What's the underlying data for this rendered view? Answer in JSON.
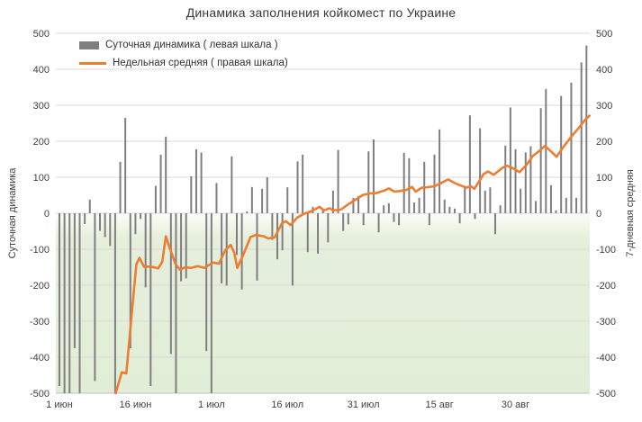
{
  "window": {
    "title": "Динамика заполнения койкомест по Украине"
  },
  "colors": {
    "bar": "#7f7f7f",
    "line": "#ed7d31",
    "grid": "#d9d9d9",
    "axis_line": "#bfbfbf",
    "tick_text": "#404040",
    "negative_band_top": "#fbfdf8",
    "negative_band": "#e5efdc",
    "negative_band_bottom": "#e2edd7"
  },
  "chart_data": {
    "type": "combo",
    "title": "Динамика заполнения койкомест по Украине",
    "legend_position": "top-left",
    "grid": "horizontal",
    "x_axis": {
      "tick_labels": [
        "1 июн",
        "16 июн",
        "1 июл",
        "16 июл",
        "31 июл",
        "15 авг",
        "30 авг"
      ],
      "tick_day_index": [
        0,
        15,
        30,
        45,
        60,
        75,
        90
      ]
    },
    "y_axis_left": {
      "title": "Суточная динамика",
      "min": -500,
      "max": 500,
      "step": 100,
      "ticks": [
        500,
        400,
        300,
        200,
        100,
        0,
        -100,
        -200,
        -300,
        -400,
        -500
      ]
    },
    "y_axis_right": {
      "title": "7-дневная средняя",
      "min": -500,
      "max": 500,
      "step": 100,
      "ticks": [
        500,
        400,
        300,
        200,
        100,
        0,
        -100,
        -200,
        -300,
        -400,
        -500
      ]
    },
    "series": [
      {
        "name": "Суточная динамика",
        "legend_label": "Суточная динамика ( левая шкала )",
        "type": "bar",
        "axis": "left",
        "color": "#7f7f7f",
        "points": [
          {
            "date": "1 июн",
            "value": -480
          },
          {
            "date": "2 июн",
            "value": -500
          },
          {
            "date": "3 июн",
            "value": -500
          },
          {
            "date": "4 июн",
            "value": -375
          },
          {
            "date": "5 июн",
            "value": -500
          },
          {
            "date": "6 июн",
            "value": -30
          },
          {
            "date": "7 июн",
            "value": 38
          },
          {
            "date": "8 июн",
            "value": -466
          },
          {
            "date": "9 июн",
            "value": -49
          },
          {
            "date": "10 июн",
            "value": -66
          },
          {
            "date": "11 июн",
            "value": -91
          },
          {
            "date": "12 июн",
            "value": -500
          },
          {
            "date": "13 июн",
            "value": 143
          },
          {
            "date": "14 июн",
            "value": 265
          },
          {
            "date": "15 июн",
            "value": -375
          },
          {
            "date": "16 июн",
            "value": -58
          },
          {
            "date": "17 июн",
            "value": -16
          },
          {
            "date": "18 июн",
            "value": -206
          },
          {
            "date": "19 июн",
            "value": -480
          },
          {
            "date": "20 июн",
            "value": 76
          },
          {
            "date": "21 июн",
            "value": 163
          },
          {
            "date": "22 июн",
            "value": 213
          },
          {
            "date": "23 июн",
            "value": -391
          },
          {
            "date": "24 июн",
            "value": -500
          },
          {
            "date": "25 июн",
            "value": -189
          },
          {
            "date": "26 июн",
            "value": -181
          },
          {
            "date": "27 июн",
            "value": 103
          },
          {
            "date": "28 июн",
            "value": 178
          },
          {
            "date": "29 июн",
            "value": 169
          },
          {
            "date": "30 июн",
            "value": -383
          },
          {
            "date": "1 июл",
            "value": -500
          },
          {
            "date": "2 июл",
            "value": 84
          },
          {
            "date": "3 июл",
            "value": -195
          },
          {
            "date": "4 июл",
            "value": -201
          },
          {
            "date": "5 июл",
            "value": 158
          },
          {
            "date": "6 июл",
            "value": -116
          },
          {
            "date": "7 июл",
            "value": -212
          },
          {
            "date": "8 июл",
            "value": 5
          },
          {
            "date": "9 июл",
            "value": 73
          },
          {
            "date": "10 июл",
            "value": -187
          },
          {
            "date": "11 июл",
            "value": 68
          },
          {
            "date": "12 июл",
            "value": 100
          },
          {
            "date": "13 июл",
            "value": -74
          },
          {
            "date": "14 июл",
            "value": -128
          },
          {
            "date": "15 июл",
            "value": -103
          },
          {
            "date": "16 июл",
            "value": 72
          },
          {
            "date": "17 июл",
            "value": -201
          },
          {
            "date": "18 июл",
            "value": 144
          },
          {
            "date": "19 июл",
            "value": 163
          },
          {
            "date": "20 июл",
            "value": -108
          },
          {
            "date": "21 июл",
            "value": 18
          },
          {
            "date": "22 июл",
            "value": -112
          },
          {
            "date": "23 июл",
            "value": 9
          },
          {
            "date": "24 июл",
            "value": -81
          },
          {
            "date": "25 июл",
            "value": 63
          },
          {
            "date": "26 июл",
            "value": 176
          },
          {
            "date": "27 июл",
            "value": -49
          },
          {
            "date": "28 июл",
            "value": -31
          },
          {
            "date": "29 июл",
            "value": 43
          },
          {
            "date": "30 июл",
            "value": 48
          },
          {
            "date": "31 июл",
            "value": -33
          },
          {
            "date": "1 авг",
            "value": 172
          },
          {
            "date": "2 авг",
            "value": 205
          },
          {
            "date": "3 авг",
            "value": -53
          },
          {
            "date": "4 авг",
            "value": 22
          },
          {
            "date": "5 авг",
            "value": 28
          },
          {
            "date": "6 авг",
            "value": -24
          },
          {
            "date": "7 авг",
            "value": -33
          },
          {
            "date": "8 авг",
            "value": 168
          },
          {
            "date": "9 авг",
            "value": 153
          },
          {
            "date": "10 авг",
            "value": 30
          },
          {
            "date": "11 авг",
            "value": 43
          },
          {
            "date": "12 авг",
            "value": 143
          },
          {
            "date": "13 авг",
            "value": -33
          },
          {
            "date": "14 авг",
            "value": 163
          },
          {
            "date": "15 авг",
            "value": 233
          },
          {
            "date": "16 авг",
            "value": 38
          },
          {
            "date": "17 авг",
            "value": 18
          },
          {
            "date": "18 авг",
            "value": 13
          },
          {
            "date": "19 авг",
            "value": -28
          },
          {
            "date": "20 авг",
            "value": 76
          },
          {
            "date": "21 авг",
            "value": 272
          },
          {
            "date": "22 авг",
            "value": -16
          },
          {
            "date": "23 авг",
            "value": 236
          },
          {
            "date": "24 авг",
            "value": 63
          },
          {
            "date": "25 авг",
            "value": 72
          },
          {
            "date": "26 авг",
            "value": -58
          },
          {
            "date": "27 авг",
            "value": 22
          },
          {
            "date": "28 авг",
            "value": 188
          },
          {
            "date": "29 авг",
            "value": 294
          },
          {
            "date": "30 авг",
            "value": 178
          },
          {
            "date": "31 авг",
            "value": 68
          },
          {
            "date": "1 сен",
            "value": 169
          },
          {
            "date": "2 сен",
            "value": 186
          },
          {
            "date": "3 сен",
            "value": 34
          },
          {
            "date": "4 сен",
            "value": 292
          },
          {
            "date": "5 сен",
            "value": 345
          },
          {
            "date": "6 сен",
            "value": 78
          },
          {
            "date": "7 сен",
            "value": 8
          },
          {
            "date": "8 сен",
            "value": 326
          },
          {
            "date": "9 сен",
            "value": 43
          },
          {
            "date": "10 сен",
            "value": 363
          },
          {
            "date": "11 сен",
            "value": 43
          },
          {
            "date": "12 сен",
            "value": 419
          },
          {
            "date": "13 сен",
            "value": 466
          }
        ]
      },
      {
        "name": "Недельная средняя",
        "legend_label": "Недельная средняя ( правая шкала)",
        "type": "line",
        "axis": "right",
        "color": "#ed7d31",
        "points": [
          {
            "d": 11.1,
            "v": -500
          },
          {
            "d": 12.3,
            "v": -442
          },
          {
            "d": 13.2,
            "v": -445
          },
          {
            "d": 14.0,
            "v": -320
          },
          {
            "d": 15.2,
            "v": -141
          },
          {
            "d": 15.8,
            "v": -124
          },
          {
            "d": 16.7,
            "v": -149
          },
          {
            "d": 18.0,
            "v": -148
          },
          {
            "d": 19.5,
            "v": -153
          },
          {
            "d": 20.3,
            "v": -135
          },
          {
            "d": 21.0,
            "v": -64
          },
          {
            "d": 21.6,
            "v": -90
          },
          {
            "d": 22.9,
            "v": -141
          },
          {
            "d": 23.8,
            "v": -157
          },
          {
            "d": 24.8,
            "v": -150
          },
          {
            "d": 26.0,
            "v": -152
          },
          {
            "d": 27.3,
            "v": -147
          },
          {
            "d": 28.6,
            "v": -152
          },
          {
            "d": 30.3,
            "v": -137
          },
          {
            "d": 31.5,
            "v": -140
          },
          {
            "d": 32.7,
            "v": -103
          },
          {
            "d": 33.8,
            "v": -88
          },
          {
            "d": 34.5,
            "v": -110
          },
          {
            "d": 35.1,
            "v": -152
          },
          {
            "d": 36.2,
            "v": -118
          },
          {
            "d": 37.7,
            "v": -66
          },
          {
            "d": 38.8,
            "v": -60
          },
          {
            "d": 40.3,
            "v": -64
          },
          {
            "d": 41.2,
            "v": -70
          },
          {
            "d": 42.5,
            "v": -67
          },
          {
            "d": 43.9,
            "v": -28
          },
          {
            "d": 44.7,
            "v": -22
          },
          {
            "d": 45.6,
            "v": -33
          },
          {
            "d": 46.9,
            "v": -12
          },
          {
            "d": 48.2,
            "v": -2
          },
          {
            "d": 49.4,
            "v": 4
          },
          {
            "d": 50.6,
            "v": 12
          },
          {
            "d": 51.3,
            "v": 18
          },
          {
            "d": 52.2,
            "v": 8
          },
          {
            "d": 53.3,
            "v": 14
          },
          {
            "d": 54.0,
            "v": 8
          },
          {
            "d": 55.5,
            "v": 10
          },
          {
            "d": 56.7,
            "v": 22
          },
          {
            "d": 57.7,
            "v": 31
          },
          {
            "d": 59.9,
            "v": 51
          },
          {
            "d": 61.2,
            "v": 55
          },
          {
            "d": 62.5,
            "v": 56
          },
          {
            "d": 64.1,
            "v": 63
          },
          {
            "d": 65.0,
            "v": 69
          },
          {
            "d": 66.1,
            "v": 60
          },
          {
            "d": 67.3,
            "v": 62
          },
          {
            "d": 68.5,
            "v": 65
          },
          {
            "d": 69.6,
            "v": 73
          },
          {
            "d": 70.3,
            "v": 60
          },
          {
            "d": 71.5,
            "v": 71
          },
          {
            "d": 72.5,
            "v": 72
          },
          {
            "d": 74.0,
            "v": 75
          },
          {
            "d": 75.3,
            "v": 84
          },
          {
            "d": 76.7,
            "v": 94
          },
          {
            "d": 78.0,
            "v": 84
          },
          {
            "d": 79.2,
            "v": 77
          },
          {
            "d": 80.3,
            "v": 71
          },
          {
            "d": 81.2,
            "v": 75
          },
          {
            "d": 81.9,
            "v": 68
          },
          {
            "d": 83.7,
            "v": 109
          },
          {
            "d": 84.6,
            "v": 116
          },
          {
            "d": 85.7,
            "v": 107
          },
          {
            "d": 87.4,
            "v": 126
          },
          {
            "d": 88.3,
            "v": 132
          },
          {
            "d": 89.5,
            "v": 125
          },
          {
            "d": 90.8,
            "v": 114
          },
          {
            "d": 92.2,
            "v": 135
          },
          {
            "d": 93.4,
            "v": 159
          },
          {
            "d": 94.6,
            "v": 172
          },
          {
            "d": 95.8,
            "v": 187
          },
          {
            "d": 97.0,
            "v": 172
          },
          {
            "d": 98.1,
            "v": 157
          },
          {
            "d": 99.4,
            "v": 183
          },
          {
            "d": 100.8,
            "v": 209
          },
          {
            "d": 102.3,
            "v": 234
          },
          {
            "d": 103.7,
            "v": 259
          },
          {
            "d": 104.6,
            "v": 271
          }
        ]
      }
    ]
  }
}
